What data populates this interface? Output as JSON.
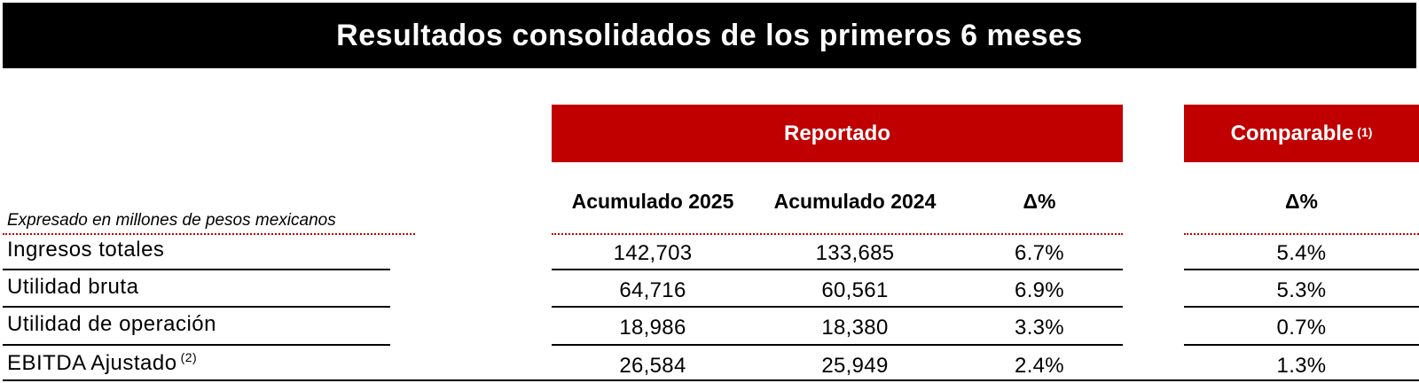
{
  "title": "Resultados consolidados de los primeros 6 meses",
  "groups": {
    "reportado": "Reportado",
    "comparable": "Comparable",
    "comparable_note": "(1)"
  },
  "columns": {
    "acum_2025": "Acumulado 2025",
    "acum_2024": "Acumulado 2024",
    "delta": "Δ%",
    "comp_delta": "Δ%"
  },
  "units_note": "Expresado en millones de pesos mexicanos",
  "rows": [
    {
      "label": "Ingresos totales",
      "note": "",
      "acum_2025": "142,703",
      "acum_2024": "133,685",
      "delta": "6.7%",
      "comp_delta": "5.4%"
    },
    {
      "label": "Utilidad bruta",
      "note": "",
      "acum_2025": "64,716",
      "acum_2024": "60,561",
      "delta": "6.9%",
      "comp_delta": "5.3%"
    },
    {
      "label": "Utilidad de operación",
      "note": "",
      "acum_2025": "18,986",
      "acum_2024": "18,380",
      "delta": "3.3%",
      "comp_delta": "0.7%"
    },
    {
      "label": "EBITDA Ajustado",
      "note": "(2)",
      "acum_2025": "26,584",
      "acum_2024": "25,949",
      "delta": "2.4%",
      "comp_delta": "1.3%"
    }
  ],
  "colors": {
    "accent_red": "#c00000",
    "title_bg": "#000000"
  }
}
